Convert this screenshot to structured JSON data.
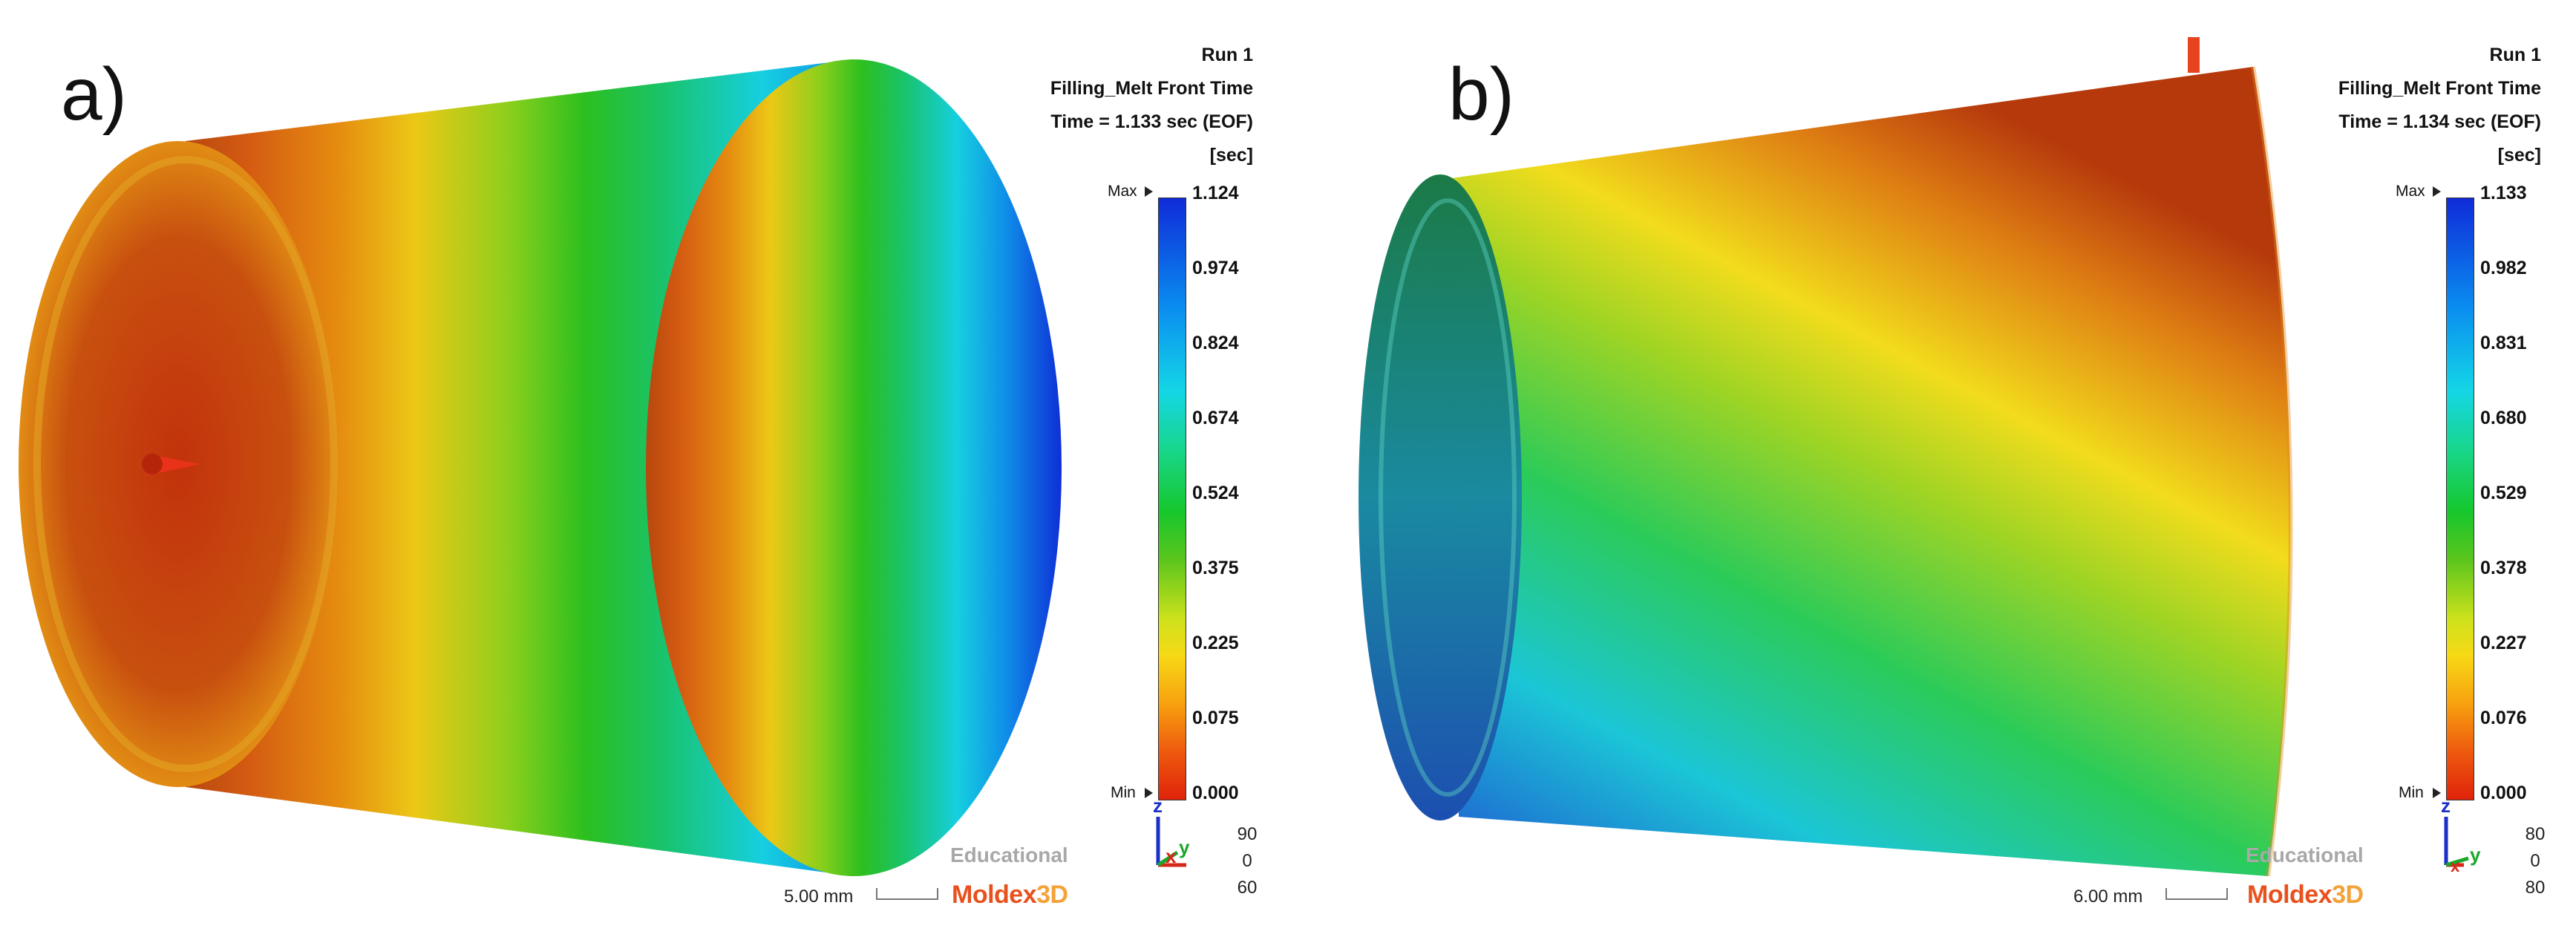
{
  "panels": [
    {
      "letter": "a)",
      "header": [
        "Run 1",
        "Filling_Melt Front Time",
        "Time = 1.133 sec (EOF)",
        "[sec]"
      ],
      "legend": {
        "max_label": "Max",
        "min_label": "Min",
        "ticks": [
          "1.124",
          "0.974",
          "0.824",
          "0.674",
          "0.524",
          "0.375",
          "0.225",
          "0.075",
          "0.000"
        ]
      },
      "watermark": "Educational",
      "brand": "Moldex",
      "brand_suffix": "3D",
      "scale": "5.00 mm",
      "triad": {
        "z": "z",
        "x": "x",
        "y": "y",
        "angles": [
          "90",
          "0",
          "60"
        ]
      }
    },
    {
      "letter": "b)",
      "header": [
        "Run 1",
        "Filling_Melt Front Time",
        "Time = 1.134 sec (EOF)",
        "[sec]"
      ],
      "legend": {
        "max_label": "Max",
        "min_label": "Min",
        "ticks": [
          "1.133",
          "0.982",
          "0.831",
          "0.680",
          "0.529",
          "0.378",
          "0.227",
          "0.076",
          "0.000"
        ]
      },
      "watermark": "Educational",
      "brand": "Moldex",
      "brand_suffix": "3D",
      "scale": "6.00 mm",
      "triad": {
        "z": "z",
        "x": "x",
        "y": "y",
        "angles": [
          "80",
          "0",
          "80"
        ]
      }
    }
  ],
  "colors": {
    "max": "#0f2bd8",
    "min": "#e0230b",
    "brand": "#e8511d"
  }
}
